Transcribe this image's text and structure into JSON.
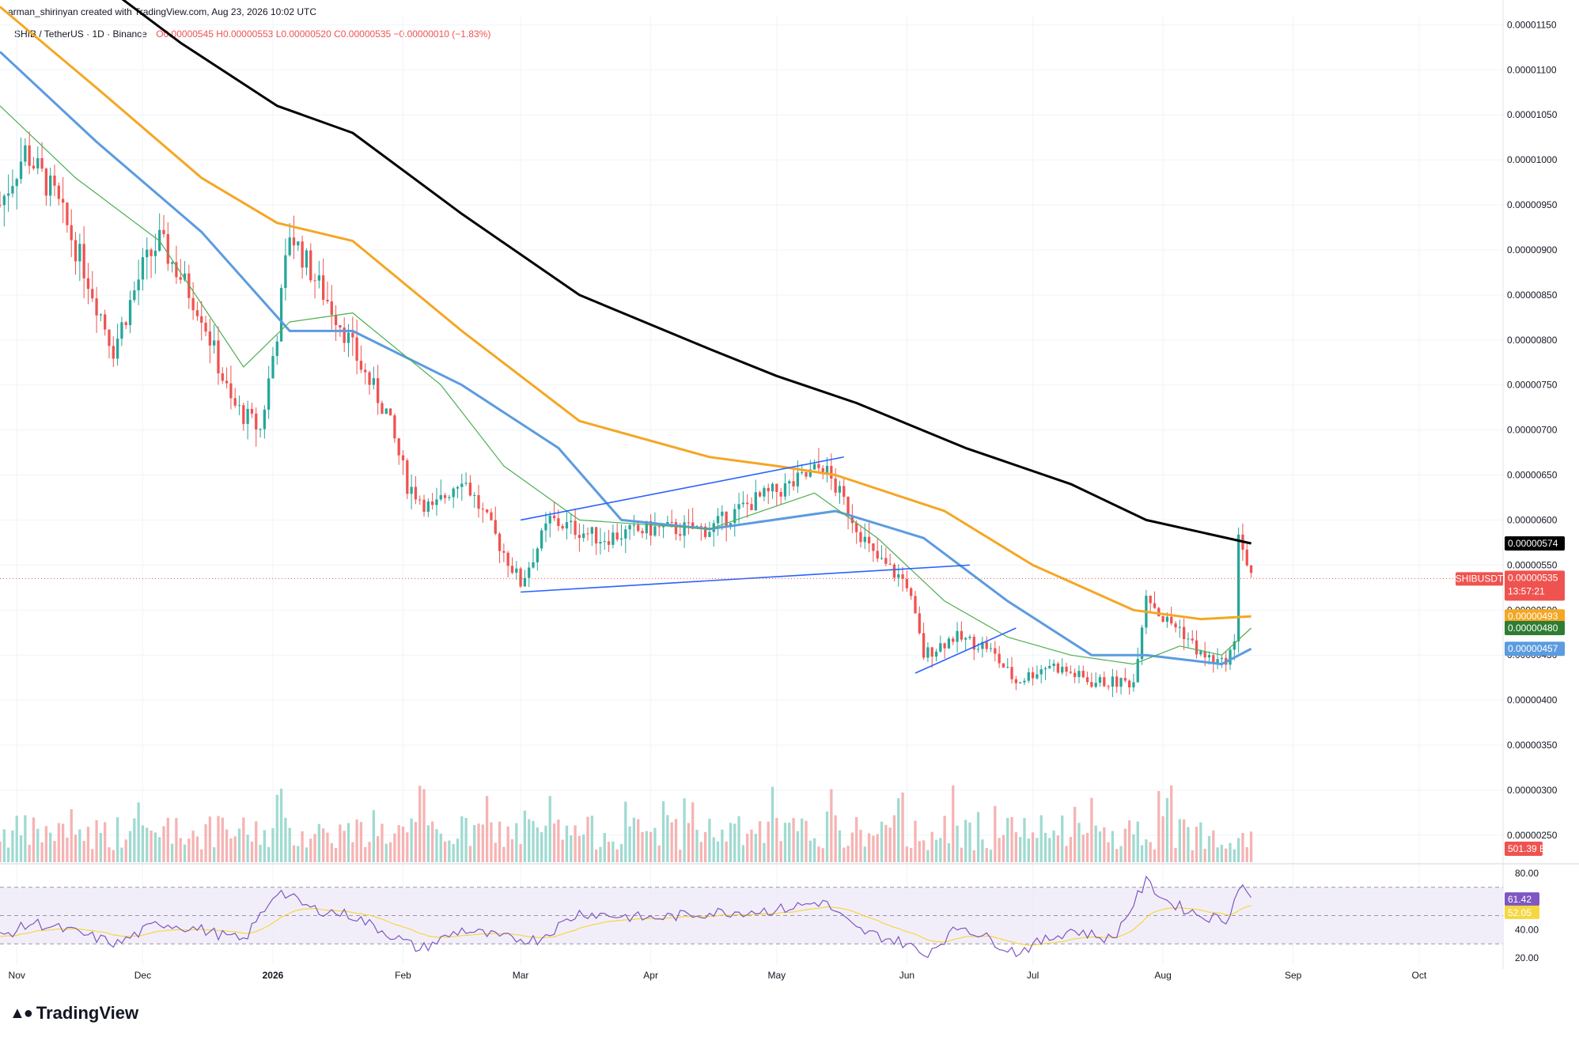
{
  "header": {
    "text": "arman_shirinyan created with TradingView.com, Aug 23, 2026 10:02 UTC"
  },
  "legend": {
    "symbol": "SHIB / TetherUS · 1D · Binance",
    "open": "O0.00000545",
    "high": "H0.00000553",
    "low": "L0.00000520",
    "close": "C0.00000535",
    "change": "−0.00000010 (−1.83%)"
  },
  "footer": {
    "logo_text": "TradingView",
    "logo_icon": "tradingview-logo-icon"
  },
  "colors": {
    "up": "#26a69a",
    "down": "#ef5350",
    "up_volume": "#8fd3c9",
    "down_volume": "#f4a6a6",
    "ma_long": "#000000",
    "ma_mid": "#f5a623",
    "ma_short": "#5b9be0",
    "ma_fast": "#4caf50",
    "trendline": "#2962ff",
    "rsi": "#7e57c2",
    "rsi_ma": "#f5d742",
    "rsi_band": "#ede7f6"
  },
  "chart_data": {
    "type": "candlestick",
    "symbol": "SHIBUSDT",
    "timeframe": "1D",
    "price_axis": {
      "ticks": [
        "0.00001150",
        "0.00001100",
        "0.00001050",
        "0.00001000",
        "0.00000950",
        "0.00000900",
        "0.00000850",
        "0.00000800",
        "0.00000750",
        "0.00000700",
        "0.00000650",
        "0.00000600",
        "0.00000550",
        "0.00000500",
        "0.00000450",
        "0.00000400",
        "0.00000350",
        "0.00000300",
        "0.00000250"
      ],
      "range": [
        2.2e-06,
        1.16e-05
      ]
    },
    "time_axis": {
      "ticks": [
        "Nov",
        "Dec",
        "2026",
        "Feb",
        "Mar",
        "Apr",
        "May",
        "Jun",
        "Jul",
        "Aug",
        "Sep",
        "Oct"
      ],
      "start": "2025-10-28",
      "end": "2026-10-21"
    },
    "markers": [
      {
        "label": "0.00000574",
        "value": 5.74e-06,
        "color": "#000000"
      },
      {
        "label": "SHIBUSDT",
        "value": 5.35e-06,
        "color": "#ef5350",
        "price": "0.00000535",
        "countdown": "13:57:21"
      },
      {
        "label": "0.00000493",
        "value": 4.93e-06,
        "color": "#f5a623"
      },
      {
        "label": "0.00000480",
        "value": 4.8e-06,
        "color": "#2e7d32"
      },
      {
        "label": "0.00000457",
        "value": 4.57e-06,
        "color": "#5b9be0"
      }
    ],
    "volume_label": "501.39 B",
    "moving_averages": [
      {
        "color": "#000000",
        "points": [
          [
            "2025-11-20",
            1.2e-05
          ],
          [
            "2025-12-10",
            1.13e-05
          ],
          [
            "2026-01-02",
            1.06e-05
          ],
          [
            "2026-01-20",
            1.03e-05
          ],
          [
            "2026-02-15",
            9.4e-06
          ],
          [
            "2026-03-15",
            8.5e-06
          ],
          [
            "2026-04-15",
            7.9e-06
          ],
          [
            "2026-05-01",
            7.6e-06
          ],
          [
            "2026-05-20",
            7.3e-06
          ],
          [
            "2026-06-15",
            6.8e-06
          ],
          [
            "2026-07-10",
            6.4e-06
          ],
          [
            "2026-07-28",
            6e-06
          ],
          [
            "2026-08-22",
            5.74e-06
          ]
        ]
      },
      {
        "color": "#f5a623",
        "points": [
          [
            "2025-10-28",
            1.17e-05
          ],
          [
            "2025-11-20",
            1.08e-05
          ],
          [
            "2025-12-15",
            9.8e-06
          ],
          [
            "2026-01-02",
            9.3e-06
          ],
          [
            "2026-01-20",
            9.1e-06
          ],
          [
            "2026-02-15",
            8.1e-06
          ],
          [
            "2026-03-15",
            7.1e-06
          ],
          [
            "2026-04-15",
            6.7e-06
          ],
          [
            "2026-05-01",
            6.6e-06
          ],
          [
            "2026-05-15",
            6.5e-06
          ],
          [
            "2026-06-10",
            6.1e-06
          ],
          [
            "2026-07-01",
            5.5e-06
          ],
          [
            "2026-07-25",
            5e-06
          ],
          [
            "2026-08-10",
            4.9e-06
          ],
          [
            "2026-08-22",
            4.93e-06
          ]
        ]
      },
      {
        "color": "#5b9be0",
        "points": [
          [
            "2025-10-28",
            1.12e-05
          ],
          [
            "2025-11-20",
            1.02e-05
          ],
          [
            "2025-12-15",
            9.2e-06
          ],
          [
            "2026-01-05",
            8.1e-06
          ],
          [
            "2026-01-20",
            8.1e-06
          ],
          [
            "2026-02-15",
            7.5e-06
          ],
          [
            "2026-03-10",
            6.8e-06
          ],
          [
            "2026-03-25",
            6e-06
          ],
          [
            "2026-04-15",
            5.9e-06
          ],
          [
            "2026-05-15",
            6.1e-06
          ],
          [
            "2026-06-05",
            5.8e-06
          ],
          [
            "2026-06-25",
            5.1e-06
          ],
          [
            "2026-07-15",
            4.5e-06
          ],
          [
            "2026-07-28",
            4.5e-06
          ],
          [
            "2026-08-15",
            4.4e-06
          ],
          [
            "2026-08-22",
            4.57e-06
          ]
        ]
      },
      {
        "color": "#4caf50",
        "points": [
          [
            "2025-10-28",
            1.06e-05
          ],
          [
            "2025-11-15",
            9.8e-06
          ],
          [
            "2025-12-05",
            9.1e-06
          ],
          [
            "2025-12-25",
            7.7e-06
          ],
          [
            "2026-01-05",
            8.2e-06
          ],
          [
            "2026-01-20",
            8.3e-06
          ],
          [
            "2026-02-10",
            7.5e-06
          ],
          [
            "2026-02-25",
            6.6e-06
          ],
          [
            "2026-03-15",
            6e-06
          ],
          [
            "2026-04-15",
            5.9e-06
          ],
          [
            "2026-05-10",
            6.3e-06
          ],
          [
            "2026-05-25",
            5.8e-06
          ],
          [
            "2026-06-10",
            5.1e-06
          ],
          [
            "2026-06-25",
            4.7e-06
          ],
          [
            "2026-07-10",
            4.5e-06
          ],
          [
            "2026-07-25",
            4.4e-06
          ],
          [
            "2026-08-05",
            4.6e-06
          ],
          [
            "2026-08-15",
            4.5e-06
          ],
          [
            "2026-08-22",
            4.8e-06
          ]
        ]
      }
    ],
    "trendlines": [
      {
        "from": [
          "2026-03-01",
          6e-06
        ],
        "to": [
          "2026-05-17",
          6.7e-06
        ]
      },
      {
        "from": [
          "2026-03-01",
          5.2e-06
        ],
        "to": [
          "2026-06-16",
          5.5e-06
        ]
      },
      {
        "from": [
          "2026-06-03",
          4.3e-06
        ],
        "to": [
          "2026-06-27",
          4.8e-06
        ]
      }
    ],
    "candles_keypoints": [
      [
        "2025-10-28",
        9.5e-06
      ],
      [
        "2025-11-03",
        1.01e-05
      ],
      [
        "2025-11-10",
        9.6e-06
      ],
      [
        "2025-11-17",
        8.8e-06
      ],
      [
        "2025-11-24",
        7.9e-06
      ],
      [
        "2025-12-01",
        8.8e-06
      ],
      [
        "2025-12-05",
        9.1e-06
      ],
      [
        "2025-12-10",
        8.7e-06
      ],
      [
        "2025-12-15",
        8.3e-06
      ],
      [
        "2025-12-22",
        7.3e-06
      ],
      [
        "2025-12-29",
        7e-06
      ],
      [
        "2026-01-02",
        8.1e-06
      ],
      [
        "2026-01-05",
        9.2e-06
      ],
      [
        "2026-01-12",
        8.6e-06
      ],
      [
        "2026-01-17",
        8.2e-06
      ],
      [
        "2026-01-22",
        7.7e-06
      ],
      [
        "2026-01-28",
        7.2e-06
      ],
      [
        "2026-02-02",
        6.4e-06
      ],
      [
        "2026-02-08",
        6.1e-06
      ],
      [
        "2026-02-15",
        6.5e-06
      ],
      [
        "2026-02-22",
        5.9e-06
      ],
      [
        "2026-03-01",
        5.3e-06
      ],
      [
        "2026-03-08",
        6e-06
      ],
      [
        "2026-03-20",
        5.8e-06
      ],
      [
        "2026-04-01",
        5.9e-06
      ],
      [
        "2026-04-15",
        5.9e-06
      ],
      [
        "2026-04-25",
        6.2e-06
      ],
      [
        "2026-05-05",
        6.4e-06
      ],
      [
        "2026-05-12",
        6.6e-06
      ],
      [
        "2026-05-17",
        6.2e-06
      ],
      [
        "2026-05-24",
        5.6e-06
      ],
      [
        "2026-06-01",
        5.3e-06
      ],
      [
        "2026-06-05",
        4.5e-06
      ],
      [
        "2026-06-12",
        4.7e-06
      ],
      [
        "2026-06-20",
        4.6e-06
      ],
      [
        "2026-06-27",
        4.2e-06
      ],
      [
        "2026-07-05",
        4.4e-06
      ],
      [
        "2026-07-15",
        4.2e-06
      ],
      [
        "2026-07-25",
        4.2e-06
      ],
      [
        "2026-07-28",
        5.2e-06
      ],
      [
        "2026-08-01",
        4.9e-06
      ],
      [
        "2026-08-05",
        4.8e-06
      ],
      [
        "2026-08-10",
        4.5e-06
      ],
      [
        "2026-08-15",
        4.4e-06
      ],
      [
        "2026-08-18",
        4.6e-06
      ],
      [
        "2026-08-19",
        5.9e-06
      ],
      [
        "2026-08-20",
        5.7e-06
      ],
      [
        "2026-08-21",
        5.5e-06
      ],
      [
        "2026-08-22",
        5.35e-06
      ]
    ],
    "rsi": {
      "axis_ticks": [
        "80.00",
        "40.00",
        "20.00"
      ],
      "range": [
        15,
        85
      ],
      "bands": [
        30,
        70
      ],
      "labels": [
        {
          "text": "61.42",
          "value": 61.42,
          "color": "#7e57c2"
        },
        {
          "text": "52.05",
          "value": 52.05,
          "color": "#f5d742"
        }
      ],
      "keypoints": [
        [
          "2025-10-28",
          35
        ],
        [
          "2025-11-05",
          45
        ],
        [
          "2025-11-15",
          38
        ],
        [
          "2025-11-25",
          30
        ],
        [
          "2025-12-05",
          45
        ],
        [
          "2025-12-15",
          40
        ],
        [
          "2025-12-25",
          32
        ],
        [
          "2026-01-02",
          68
        ],
        [
          "2026-01-10",
          55
        ],
        [
          "2026-01-20",
          50
        ],
        [
          "2026-01-28",
          38
        ],
        [
          "2026-02-05",
          26
        ],
        [
          "2026-02-15",
          40
        ],
        [
          "2026-02-25",
          34
        ],
        [
          "2026-03-05",
          33
        ],
        [
          "2026-03-15",
          52
        ],
        [
          "2026-04-01",
          48
        ],
        [
          "2026-04-15",
          52
        ],
        [
          "2026-05-01",
          54
        ],
        [
          "2026-05-12",
          60
        ],
        [
          "2026-05-20",
          40
        ],
        [
          "2026-06-01",
          30
        ],
        [
          "2026-06-05",
          22
        ],
        [
          "2026-06-14",
          43
        ],
        [
          "2026-06-27",
          24
        ],
        [
          "2026-07-10",
          40
        ],
        [
          "2026-07-20",
          33
        ],
        [
          "2026-07-28",
          74
        ],
        [
          "2026-08-02",
          60
        ],
        [
          "2026-08-10",
          50
        ],
        [
          "2026-08-16",
          47
        ],
        [
          "2026-08-20",
          74
        ],
        [
          "2026-08-22",
          61.42
        ]
      ]
    }
  }
}
